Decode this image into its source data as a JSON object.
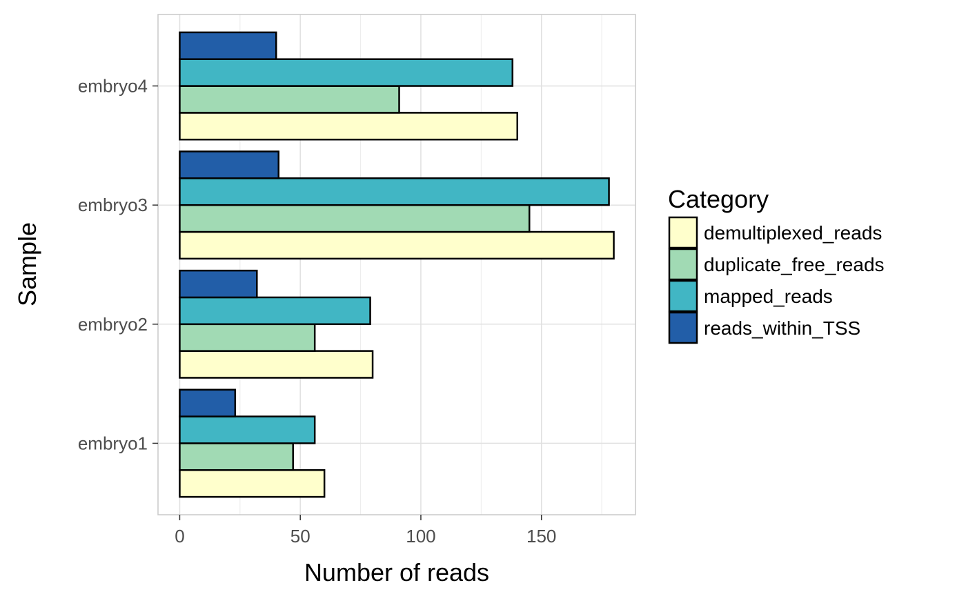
{
  "chart_data": {
    "type": "bar",
    "orientation": "horizontal",
    "categories": [
      "embryo1",
      "embryo2",
      "embryo3",
      "embryo4"
    ],
    "series": [
      {
        "name": "demultiplexed_reads",
        "color": "#FFFFCC",
        "values": [
          60,
          80,
          180,
          140
        ]
      },
      {
        "name": "duplicate_free_reads",
        "color": "#A1DAB4",
        "values": [
          47,
          56,
          145,
          91
        ]
      },
      {
        "name": "mapped_reads",
        "color": "#41B6C4",
        "values": [
          56,
          79,
          178,
          138
        ]
      },
      {
        "name": "reads_within_TSS",
        "color": "#225EA8",
        "values": [
          23,
          32,
          41,
          40
        ]
      }
    ],
    "xlabel": "Number of reads",
    "ylabel": "Sample",
    "xlim": [
      -9,
      189
    ],
    "xticks": [
      0,
      50,
      100,
      150
    ],
    "xtick_labels": [
      "0",
      "50",
      "100",
      "150"
    ],
    "grid": true,
    "legend": {
      "title": "Category",
      "position": "right"
    }
  }
}
